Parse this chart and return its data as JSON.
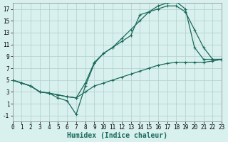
{
  "xlabel": "Humidex (Indice chaleur)",
  "xlim": [
    0,
    23
  ],
  "ylim": [
    -2,
    18
  ],
  "yticks": [
    -1,
    1,
    3,
    5,
    7,
    9,
    11,
    13,
    15,
    17
  ],
  "xticks": [
    0,
    1,
    2,
    3,
    4,
    5,
    6,
    7,
    8,
    9,
    10,
    11,
    12,
    13,
    14,
    15,
    16,
    17,
    18,
    19,
    20,
    21,
    22,
    23
  ],
  "bg_color": "#d8f0ee",
  "grid_color": "#b0cecc",
  "line_color": "#1a6b5a",
  "line1_x": [
    0,
    1,
    2,
    3,
    4,
    5,
    6,
    7,
    8,
    9,
    10,
    11,
    12,
    13,
    14,
    15,
    16,
    17,
    18,
    19,
    20,
    21,
    22,
    23
  ],
  "line1_y": [
    5.0,
    4.5,
    4.0,
    3.0,
    2.8,
    2.0,
    1.5,
    -0.8,
    4.0,
    7.8,
    9.5,
    10.5,
    11.5,
    12.5,
    16.0,
    16.5,
    17.5,
    18.0,
    18.2,
    17.0,
    10.5,
    8.5,
    8.5,
    8.5
  ],
  "line2_x": [
    0,
    1,
    2,
    3,
    4,
    5,
    6,
    7,
    8,
    9,
    10,
    11,
    12,
    13,
    14,
    15,
    16,
    17,
    18,
    19,
    20,
    21,
    22,
    23
  ],
  "line2_y": [
    5.0,
    4.5,
    4.0,
    3.0,
    2.8,
    2.5,
    2.2,
    2.0,
    4.5,
    8.0,
    9.5,
    10.5,
    12.0,
    13.5,
    15.0,
    16.5,
    17.0,
    17.5,
    17.5,
    16.5,
    13.5,
    10.5,
    8.5,
    8.5
  ],
  "line3_x": [
    0,
    1,
    2,
    3,
    4,
    5,
    6,
    7,
    8,
    9,
    10,
    11,
    12,
    13,
    14,
    15,
    16,
    17,
    18,
    19,
    20,
    21,
    22,
    23
  ],
  "line3_y": [
    5.0,
    4.5,
    4.0,
    3.0,
    2.8,
    2.5,
    2.2,
    2.0,
    3.0,
    4.0,
    4.5,
    5.0,
    5.5,
    6.0,
    6.5,
    7.0,
    7.5,
    7.8,
    8.0,
    8.0,
    8.0,
    8.0,
    8.2,
    8.5
  ],
  "tick_fontsize": 5.5,
  "xlabel_fontsize": 7.0
}
